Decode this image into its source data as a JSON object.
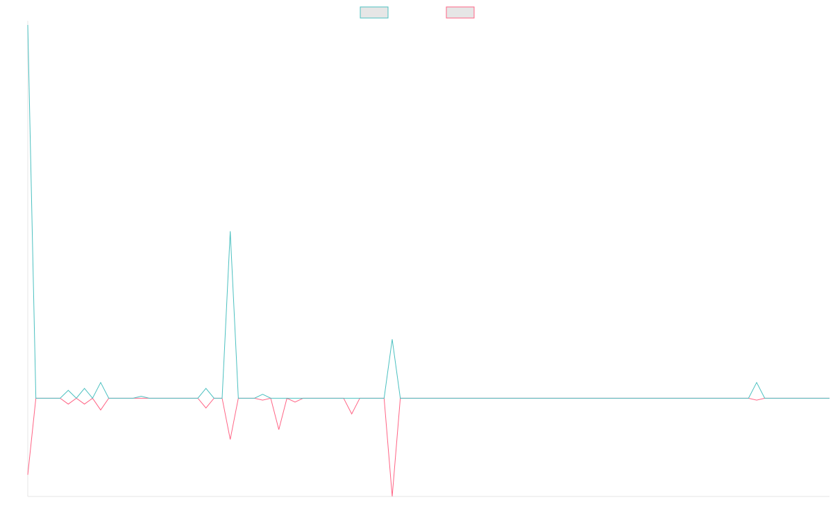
{
  "chart_data": {
    "type": "line",
    "title": "",
    "xlabel": "",
    "ylabel": "",
    "grid": false,
    "legend_position": "top-center",
    "x_count": 100,
    "ylim": [
      -50,
      190
    ],
    "series": [
      {
        "name": "",
        "color": "#4bc0c0",
        "values": [
          190,
          0,
          0,
          0,
          0,
          4,
          0,
          5,
          0,
          8,
          0,
          0,
          0,
          0,
          1,
          0,
          0,
          0,
          0,
          0,
          0,
          0,
          5,
          0,
          0,
          85,
          0,
          0,
          0,
          2,
          0,
          0,
          0,
          0,
          0,
          0,
          0,
          0,
          0,
          0,
          0,
          0,
          0,
          0,
          0,
          30,
          0,
          0,
          0,
          0,
          0,
          0,
          0,
          0,
          0,
          0,
          0,
          0,
          0,
          0,
          0,
          0,
          0,
          0,
          0,
          0,
          0,
          0,
          0,
          0,
          0,
          0,
          0,
          0,
          0,
          0,
          0,
          0,
          0,
          0,
          0,
          0,
          0,
          0,
          0,
          0,
          0,
          0,
          0,
          0,
          8,
          0,
          0,
          0,
          0,
          0,
          0,
          0,
          0,
          0
        ]
      },
      {
        "name": "",
        "color": "#ff6384",
        "values": [
          -39,
          0,
          0,
          0,
          0,
          -3,
          0,
          -3,
          0,
          -6,
          0,
          0,
          0,
          0,
          0,
          0,
          0,
          0,
          0,
          0,
          0,
          0,
          -5,
          0,
          0,
          -21,
          0,
          0,
          0,
          -1,
          0,
          -16,
          0,
          -2,
          0,
          0,
          0,
          0,
          0,
          0,
          -8,
          0,
          0,
          0,
          0,
          -50,
          0,
          0,
          0,
          0,
          0,
          0,
          0,
          0,
          0,
          0,
          0,
          0,
          0,
          0,
          0,
          0,
          0,
          0,
          0,
          0,
          0,
          0,
          0,
          0,
          0,
          0,
          0,
          0,
          0,
          0,
          0,
          0,
          0,
          0,
          0,
          0,
          0,
          0,
          0,
          0,
          0,
          0,
          0,
          0,
          -1,
          0,
          0,
          0,
          0,
          0,
          0,
          0,
          0,
          0
        ]
      }
    ]
  }
}
